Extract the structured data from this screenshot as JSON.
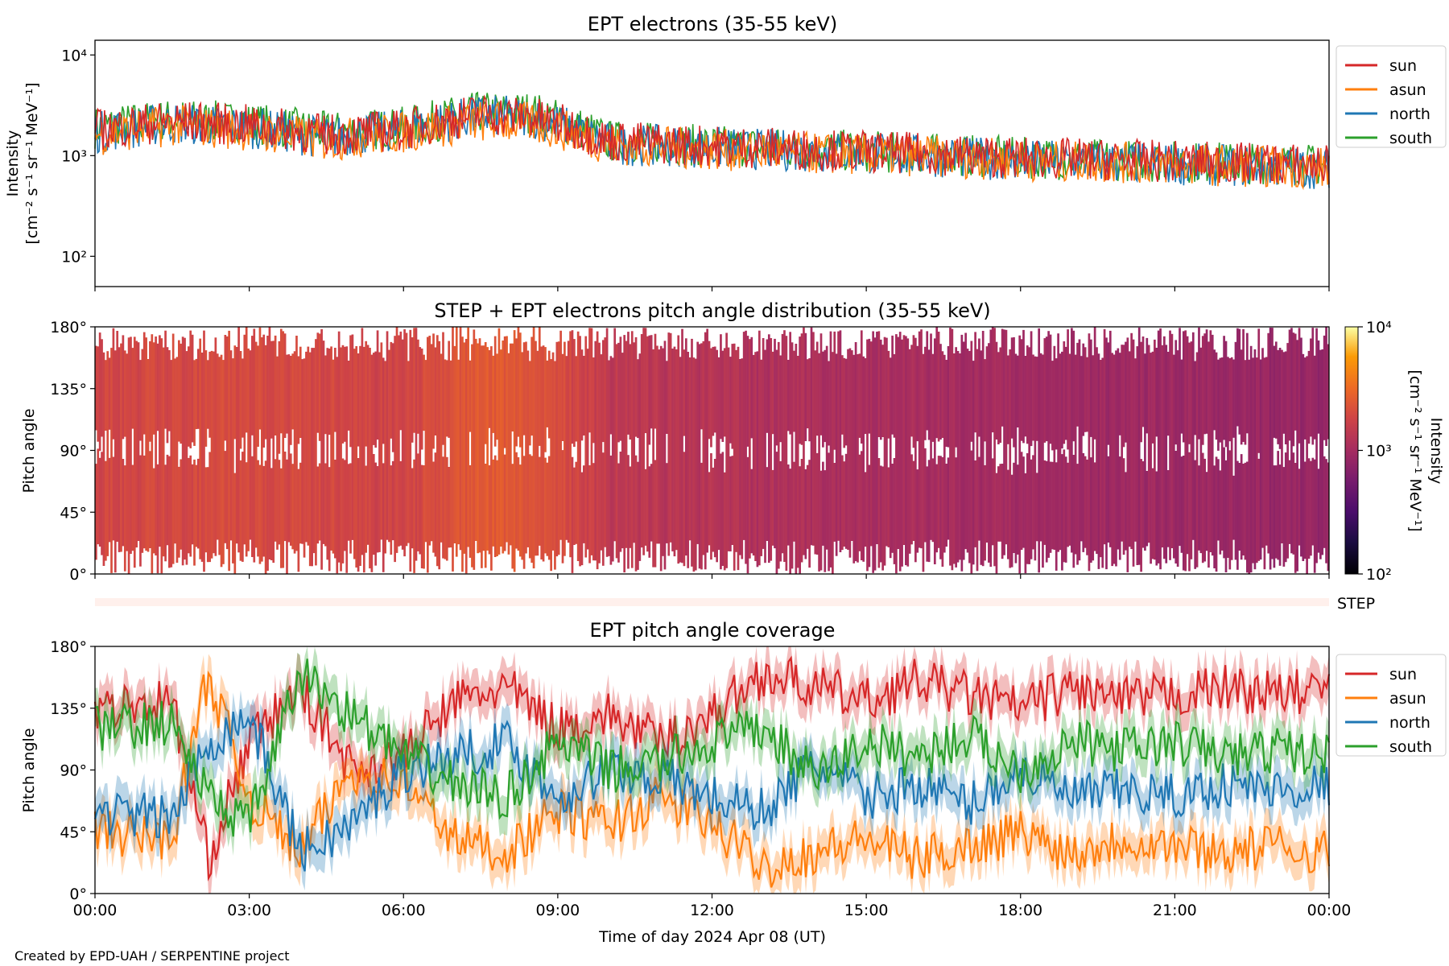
{
  "footer": "Created by EPD-UAH / SERPENTINE project",
  "xlabel": "Time of day 2024 Apr 08 (UT)",
  "xticks": [
    "00:00",
    "03:00",
    "06:00",
    "09:00",
    "12:00",
    "15:00",
    "18:00",
    "21:00",
    "00:00"
  ],
  "colors": {
    "sun": "#d62728",
    "asun": "#ff7f0e",
    "north": "#1f77b4",
    "south": "#2ca02c"
  },
  "step_label": "STEP",
  "chart_data": [
    {
      "type": "line",
      "title": "EPT electrons (35-55 keV)",
      "ylabel_line1": "Intensity",
      "ylabel_line2": "[cm⁻² s⁻¹ sr⁻¹ MeV⁻¹]",
      "yscale": "log",
      "ylim": [
        50,
        14000
      ],
      "yticks": [
        "10²",
        "10³",
        "10⁴"
      ],
      "xlim_hours": [
        0,
        24
      ],
      "legend": [
        "sun",
        "asun",
        "north",
        "south"
      ],
      "legend_loc": "outside right",
      "series": [
        {
          "name": "sun",
          "x": [
            0,
            1.5,
            3,
            4.5,
            6,
            7.5,
            8.5,
            10,
            12,
            14,
            16,
            18,
            20,
            22,
            24
          ],
          "y": [
            1800,
            2200,
            2000,
            1600,
            1800,
            2600,
            2400,
            1400,
            1250,
            1150,
            1050,
            950,
            900,
            850,
            800
          ]
        },
        {
          "name": "asun",
          "x": [
            0,
            1.5,
            3,
            4.5,
            6,
            7.5,
            8.5,
            10,
            12,
            14,
            16,
            18,
            20,
            22,
            24
          ],
          "y": [
            1600,
            2000,
            1800,
            1400,
            1700,
            2200,
            2100,
            1300,
            1150,
            1050,
            1000,
            900,
            850,
            800,
            750
          ]
        },
        {
          "name": "north",
          "x": [
            0,
            1.5,
            3,
            4.5,
            6,
            7.5,
            8.5,
            10,
            12,
            14,
            16,
            18,
            20,
            22,
            24
          ],
          "y": [
            1700,
            2100,
            1900,
            1500,
            1800,
            2500,
            2400,
            1300,
            1200,
            1100,
            1000,
            900,
            850,
            800,
            750
          ]
        },
        {
          "name": "south",
          "x": [
            0,
            1.5,
            3,
            4.5,
            6,
            7.5,
            8.5,
            10,
            12,
            14,
            16,
            18,
            20,
            22,
            24
          ],
          "y": [
            1900,
            2300,
            2100,
            1700,
            1900,
            2700,
            2700,
            1400,
            1250,
            1150,
            1050,
            950,
            900,
            850,
            800
          ]
        }
      ]
    },
    {
      "type": "heatmap",
      "title": "STEP + EPT electrons pitch angle distribution (35-55 keV)",
      "ylabel": "Pitch angle",
      "ylim_deg": [
        0,
        180
      ],
      "yticks": [
        "0°",
        "45°",
        "90°",
        "135°",
        "180°"
      ],
      "colorbar_label_line1": "Intensity",
      "colorbar_label_line2": "[cm⁻² s⁻¹ sr⁻¹ MeV⁻¹]",
      "colorbar_scale": "log",
      "colorbar_range": [
        100,
        10000
      ],
      "colorbar_ticks": [
        "10²",
        "10³",
        "10⁴"
      ],
      "colormap": "inferno",
      "intensity_by_hour": {
        "x": [
          0,
          3,
          6,
          7.5,
          8.5,
          10,
          12,
          15,
          18,
          21,
          24
        ],
        "y": [
          1800,
          2000,
          1700,
          2500,
          2300,
          1400,
          1200,
          1050,
          950,
          900,
          800
        ]
      }
    },
    {
      "type": "line",
      "title": "EPT pitch angle coverage",
      "ylabel": "Pitch angle",
      "ylim_deg": [
        0,
        180
      ],
      "yticks": [
        "0°",
        "45°",
        "90°",
        "135°",
        "180°"
      ],
      "legend": [
        "sun",
        "asun",
        "north",
        "south"
      ],
      "legend_loc": "outside right",
      "series": [
        {
          "name": "sun",
          "x": [
            0,
            1.5,
            2.2,
            3,
            4,
            5,
            6,
            7,
            8,
            9,
            10,
            11,
            12,
            13,
            14,
            15,
            16,
            17,
            18,
            19,
            20,
            21,
            22,
            23,
            24
          ],
          "y": [
            135,
            140,
            25,
            110,
            150,
            90,
            100,
            140,
            150,
            120,
            130,
            110,
            130,
            160,
            150,
            140,
            155,
            145,
            135,
            150,
            140,
            145,
            150,
            145,
            150
          ]
        },
        {
          "name": "asun",
          "x": [
            0,
            1.5,
            2.2,
            3,
            4,
            5,
            6,
            7,
            8,
            9,
            10,
            11,
            12,
            13,
            14,
            15,
            16,
            17,
            18,
            19,
            20,
            21,
            22,
            23,
            24
          ],
          "y": [
            45,
            40,
            160,
            70,
            30,
            90,
            80,
            40,
            30,
            60,
            50,
            70,
            50,
            20,
            30,
            40,
            25,
            35,
            45,
            30,
            40,
            35,
            30,
            35,
            30
          ]
        },
        {
          "name": "north",
          "x": [
            0,
            1.5,
            2.2,
            3,
            4,
            5,
            6,
            7,
            8,
            9,
            10,
            11,
            12,
            13,
            14,
            15,
            16,
            17,
            18,
            19,
            20,
            21,
            22,
            23,
            24
          ],
          "y": [
            60,
            55,
            110,
            130,
            30,
            50,
            90,
            100,
            110,
            70,
            90,
            85,
            70,
            60,
            95,
            70,
            80,
            65,
            90,
            70,
            75,
            70,
            80,
            75,
            80
          ]
        },
        {
          "name": "south",
          "x": [
            0,
            1.5,
            2.2,
            3,
            4,
            5,
            6,
            7,
            8,
            9,
            10,
            11,
            12,
            13,
            14,
            15,
            16,
            17,
            18,
            19,
            20,
            21,
            22,
            23,
            24
          ],
          "y": [
            120,
            125,
            70,
            50,
            160,
            130,
            100,
            80,
            70,
            110,
            90,
            95,
            110,
            120,
            85,
            110,
            100,
            115,
            90,
            110,
            105,
            110,
            100,
            105,
            100
          ]
        }
      ]
    }
  ]
}
